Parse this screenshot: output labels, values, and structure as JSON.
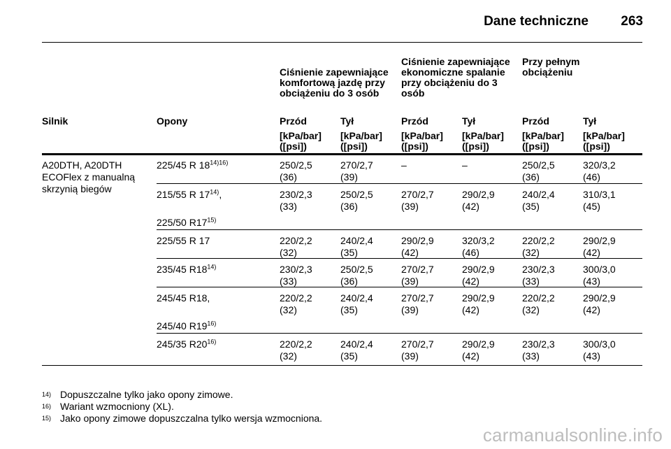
{
  "header": {
    "title": "Dane techniczne",
    "page_number": "263"
  },
  "table": {
    "group_headers": [
      "Ciśnienie zapewniające komfortową jazdę przy obciążeniu do 3 osób",
      "Ciśnienie zapewniające ekonomiczne spalanie przy obciążeniu do 3 osób",
      "Przy pełnym obciążeniu"
    ],
    "col_headers": [
      "Silnik",
      "Opony",
      "Przód",
      "Tył",
      "Przód",
      "Tył",
      "Przód",
      "Tył"
    ],
    "units": [
      "[kPa/bar] ([psi])",
      "[kPa/bar] ([psi])",
      "[kPa/bar] ([psi])",
      "[kPa/bar] ([psi])",
      "[kPa/bar] ([psi])",
      "[kPa/bar] ([psi])"
    ],
    "engine": "A20DTH, A20DTH ECOFlex z manualną skrzynią biegów",
    "rows": [
      {
        "tires": [
          {
            "text": "225/45 R 18",
            "sup": "14)16)"
          }
        ],
        "values": [
          [
            "250/2,5",
            "(36)"
          ],
          [
            "270/2,7",
            "(39)"
          ],
          [
            "–",
            ""
          ],
          [
            "–",
            ""
          ],
          [
            "250/2,5",
            "(36)"
          ],
          [
            "320/3,2",
            "(46)"
          ]
        ]
      },
      {
        "tires": [
          {
            "text": "215/55 R 17",
            "sup": "14)",
            "suffix": ","
          },
          {
            "text": "225/50 R17",
            "sup": "15)"
          }
        ],
        "values": [
          [
            "230/2,3",
            "(33)"
          ],
          [
            "250/2,5",
            "(36)"
          ],
          [
            "270/2,7",
            "(39)"
          ],
          [
            "290/2,9",
            "(42)"
          ],
          [
            "240/2,4",
            "(35)"
          ],
          [
            "310/3,1",
            "(45)"
          ]
        ]
      },
      {
        "tires": [
          {
            "text": "225/55 R 17"
          }
        ],
        "values": [
          [
            "220/2,2",
            "(32)"
          ],
          [
            "240/2,4",
            "(35)"
          ],
          [
            "290/2,9",
            "(42)"
          ],
          [
            "320/3,2",
            "(46)"
          ],
          [
            "220/2,2",
            "(32)"
          ],
          [
            "290/2,9",
            "(42)"
          ]
        ]
      },
      {
        "tires": [
          {
            "text": "235/45 R18",
            "sup": "14)"
          }
        ],
        "values": [
          [
            "230/2,3",
            "(33)"
          ],
          [
            "250/2,5",
            "(36)"
          ],
          [
            "270/2,7",
            "(39)"
          ],
          [
            "290/2,9",
            "(42)"
          ],
          [
            "230/2,3",
            "(33)"
          ],
          [
            "300/3,0",
            "(43)"
          ]
        ]
      },
      {
        "tires": [
          {
            "text": "245/45 R18",
            "suffix": ","
          },
          {
            "text": "245/40 R19",
            "sup": "16)"
          }
        ],
        "values": [
          [
            "220/2,2",
            "(32)"
          ],
          [
            "240/2,4",
            "(35)"
          ],
          [
            "270/2,7",
            "(39)"
          ],
          [
            "290/2,9",
            "(42)"
          ],
          [
            "220/2,2",
            "(32)"
          ],
          [
            "290/2,9",
            "(42)"
          ]
        ]
      },
      {
        "tires": [
          {
            "text": "245/35 R20",
            "sup": "16)"
          }
        ],
        "values": [
          [
            "220/2,2",
            "(32)"
          ],
          [
            "240/2,4",
            "(35)"
          ],
          [
            "270/2,7",
            "(39)"
          ],
          [
            "290/2,9",
            "(42)"
          ],
          [
            "230/2,3",
            "(33)"
          ],
          [
            "300/3,0",
            "(43)"
          ]
        ]
      }
    ]
  },
  "footnotes": [
    {
      "mark": "14)",
      "text": "Dopuszczalne tylko jako opony zimowe."
    },
    {
      "mark": "16)",
      "text": "Wariant wzmocniony (XL)."
    },
    {
      "mark": "15)",
      "text": "Jako opony zimowe dopuszczalna tylko wersja wzmocniona."
    }
  ],
  "watermark": "carmanualsonline.info"
}
